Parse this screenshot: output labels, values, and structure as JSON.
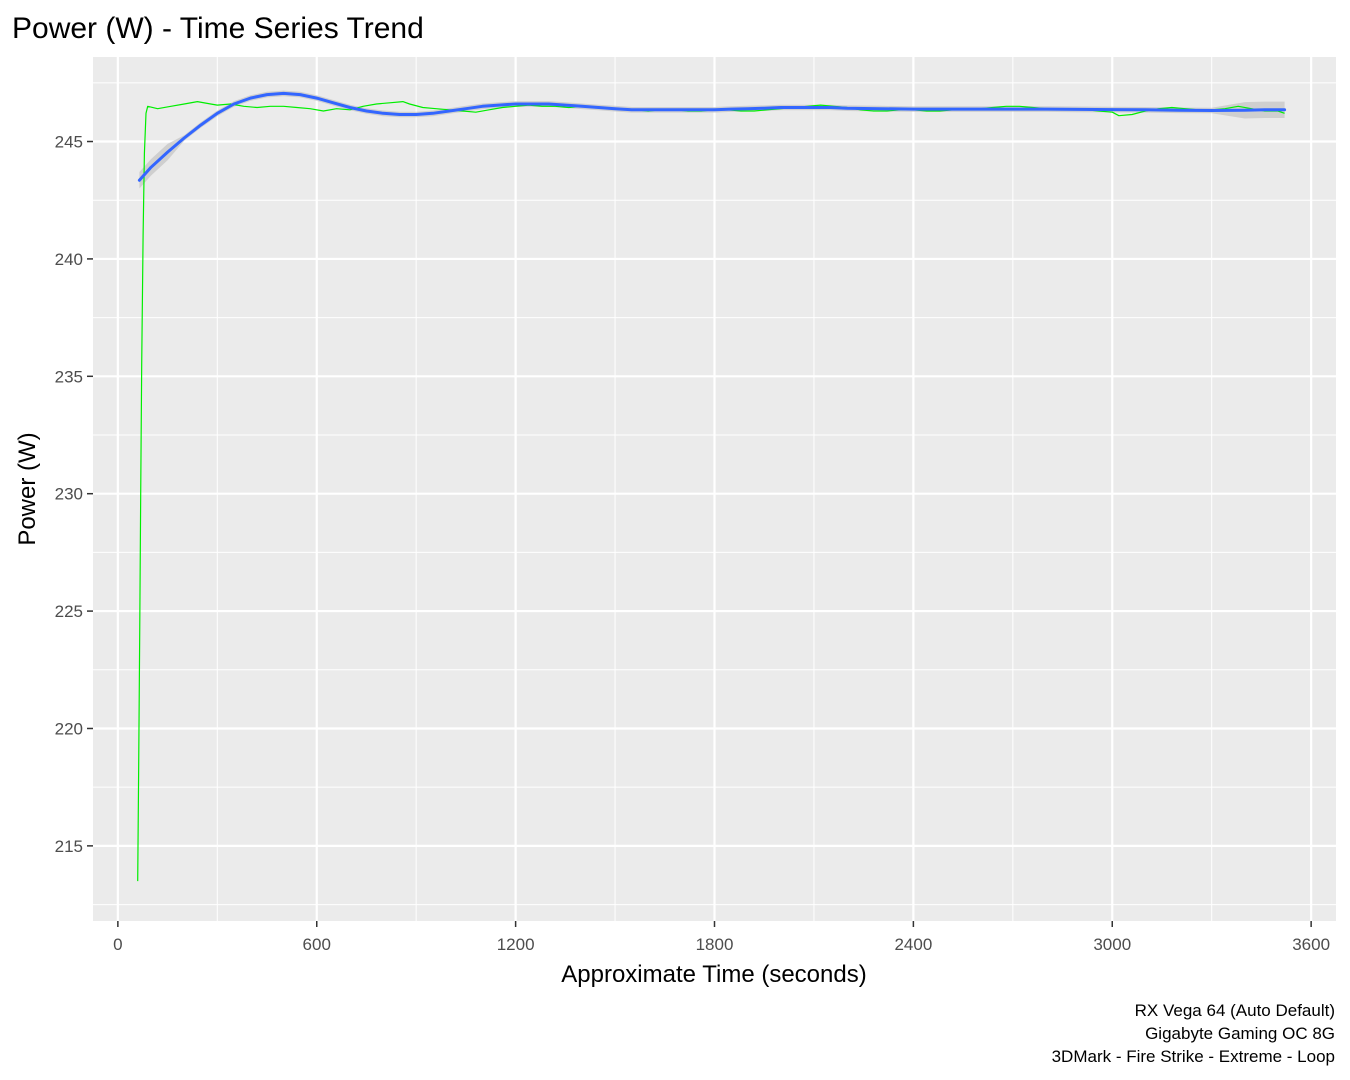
{
  "chart_data": {
    "type": "line",
    "title": "Power (W) - Time Series Trend",
    "xlabel": "Approximate Time (seconds)",
    "ylabel": "Power (W)",
    "xlim": [
      -75,
      3675
    ],
    "ylim": [
      211.8,
      248.6
    ],
    "x_ticks": [
      0,
      600,
      1200,
      1800,
      2400,
      3000,
      3600
    ],
    "y_ticks": [
      215,
      220,
      225,
      230,
      235,
      240,
      245
    ],
    "grid": true,
    "caption": [
      "RX Vega 64 (Auto Default)",
      "Gigabyte Gaming OC 8G",
      "3DMark - Fire Strike - Extreme - Loop"
    ],
    "colors": {
      "raw": "#00ee00",
      "trend": "#3366ff",
      "band": "#bdbdbd",
      "panel": "#ebebeb",
      "grid": "#ffffff"
    },
    "series": [
      {
        "values": [
          [
            60,
            213.5
          ],
          [
            63,
            218.5
          ],
          [
            66,
            224.0
          ],
          [
            69,
            230.0
          ],
          [
            72,
            235.5
          ],
          [
            76,
            241.0
          ],
          [
            80,
            244.5
          ],
          [
            85,
            246.2
          ],
          [
            90,
            246.5
          ],
          [
            120,
            246.4
          ],
          [
            160,
            246.5
          ],
          [
            200,
            246.6
          ],
          [
            240,
            246.7
          ],
          [
            280,
            246.6
          ],
          [
            300,
            246.55
          ],
          [
            340,
            246.6
          ],
          [
            380,
            246.5
          ],
          [
            420,
            246.45
          ],
          [
            460,
            246.5
          ],
          [
            500,
            246.5
          ],
          [
            540,
            246.45
          ],
          [
            580,
            246.4
          ],
          [
            620,
            246.3
          ],
          [
            660,
            246.4
          ],
          [
            700,
            246.35
          ],
          [
            740,
            246.5
          ],
          [
            780,
            246.6
          ],
          [
            820,
            246.65
          ],
          [
            860,
            246.7
          ],
          [
            880,
            246.6
          ],
          [
            920,
            246.45
          ],
          [
            960,
            246.4
          ],
          [
            1000,
            246.35
          ],
          [
            1040,
            246.3
          ],
          [
            1080,
            246.25
          ],
          [
            1120,
            246.35
          ],
          [
            1160,
            246.45
          ],
          [
            1200,
            246.5
          ],
          [
            1240,
            246.55
          ],
          [
            1280,
            246.5
          ],
          [
            1320,
            246.5
          ],
          [
            1360,
            246.45
          ],
          [
            1400,
            246.5
          ],
          [
            1440,
            246.45
          ],
          [
            1480,
            246.4
          ],
          [
            1520,
            246.35
          ],
          [
            1560,
            246.35
          ],
          [
            1600,
            246.3
          ],
          [
            1640,
            246.35
          ],
          [
            1680,
            246.35
          ],
          [
            1720,
            246.3
          ],
          [
            1760,
            246.3
          ],
          [
            1800,
            246.35
          ],
          [
            1840,
            246.35
          ],
          [
            1880,
            246.3
          ],
          [
            1920,
            246.3
          ],
          [
            1960,
            246.35
          ],
          [
            2000,
            246.4
          ],
          [
            2040,
            246.45
          ],
          [
            2080,
            246.5
          ],
          [
            2120,
            246.55
          ],
          [
            2160,
            246.5
          ],
          [
            2200,
            246.45
          ],
          [
            2240,
            246.35
          ],
          [
            2280,
            246.3
          ],
          [
            2320,
            246.3
          ],
          [
            2360,
            246.35
          ],
          [
            2400,
            246.35
          ],
          [
            2440,
            246.3
          ],
          [
            2480,
            246.3
          ],
          [
            2520,
            246.35
          ],
          [
            2560,
            246.4
          ],
          [
            2600,
            246.4
          ],
          [
            2640,
            246.45
          ],
          [
            2680,
            246.5
          ],
          [
            2720,
            246.5
          ],
          [
            2760,
            246.45
          ],
          [
            2800,
            246.4
          ],
          [
            2840,
            246.35
          ],
          [
            2880,
            246.4
          ],
          [
            2920,
            246.35
          ],
          [
            2960,
            246.3
          ],
          [
            3000,
            246.25
          ],
          [
            3020,
            246.1
          ],
          [
            3060,
            246.15
          ],
          [
            3100,
            246.3
          ],
          [
            3140,
            246.4
          ],
          [
            3180,
            246.45
          ],
          [
            3220,
            246.4
          ],
          [
            3260,
            246.35
          ],
          [
            3300,
            246.35
          ],
          [
            3340,
            246.4
          ],
          [
            3380,
            246.5
          ],
          [
            3420,
            246.4
          ],
          [
            3460,
            246.3
          ],
          [
            3500,
            246.3
          ],
          [
            3520,
            246.2
          ]
        ]
      },
      {
        "values": [
          [
            65,
            243.35
          ],
          [
            100,
            243.9
          ],
          [
            150,
            244.55
          ],
          [
            200,
            245.15
          ],
          [
            250,
            245.7
          ],
          [
            300,
            246.2
          ],
          [
            350,
            246.6
          ],
          [
            400,
            246.85
          ],
          [
            450,
            247.0
          ],
          [
            500,
            247.05
          ],
          [
            550,
            247.0
          ],
          [
            600,
            246.85
          ],
          [
            650,
            246.65
          ],
          [
            700,
            246.45
          ],
          [
            750,
            246.3
          ],
          [
            800,
            246.2
          ],
          [
            850,
            246.15
          ],
          [
            900,
            246.15
          ],
          [
            950,
            246.2
          ],
          [
            1000,
            246.3
          ],
          [
            1050,
            246.4
          ],
          [
            1100,
            246.5
          ],
          [
            1150,
            246.55
          ],
          [
            1200,
            246.6
          ],
          [
            1250,
            246.6
          ],
          [
            1300,
            246.6
          ],
          [
            1350,
            246.55
          ],
          [
            1400,
            246.5
          ],
          [
            1450,
            246.45
          ],
          [
            1500,
            246.4
          ],
          [
            1550,
            246.35
          ],
          [
            1600,
            246.35
          ],
          [
            1650,
            246.35
          ],
          [
            1700,
            246.35
          ],
          [
            1750,
            246.35
          ],
          [
            1800,
            246.35
          ],
          [
            1850,
            246.38
          ],
          [
            1900,
            246.4
          ],
          [
            1950,
            246.42
          ],
          [
            2000,
            246.45
          ],
          [
            2050,
            246.45
          ],
          [
            2100,
            246.45
          ],
          [
            2150,
            246.45
          ],
          [
            2200,
            246.42
          ],
          [
            2300,
            246.4
          ],
          [
            2400,
            246.38
          ],
          [
            2500,
            246.38
          ],
          [
            2600,
            246.38
          ],
          [
            2700,
            246.38
          ],
          [
            2800,
            246.38
          ],
          [
            2900,
            246.37
          ],
          [
            3000,
            246.36
          ],
          [
            3100,
            246.35
          ],
          [
            3200,
            246.33
          ],
          [
            3300,
            246.32
          ],
          [
            3400,
            246.33
          ],
          [
            3460,
            246.35
          ],
          [
            3520,
            246.35
          ]
        ]
      }
    ]
  }
}
